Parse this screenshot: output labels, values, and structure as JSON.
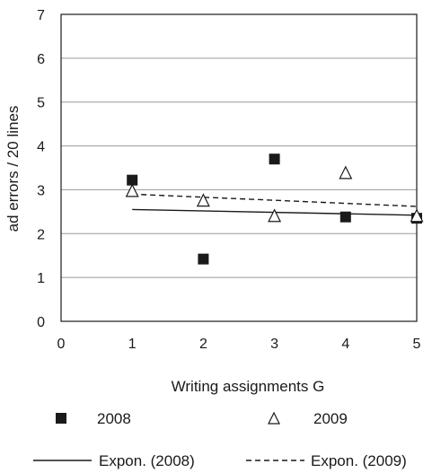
{
  "chart_data": {
    "type": "scatter",
    "title": "",
    "xlabel": "Writing assignments   G",
    "ylabel": "ad errors  / 20 lines",
    "xlim": [
      0,
      5
    ],
    "ylim": [
      0,
      7
    ],
    "xticks": [
      "0",
      "1",
      "2",
      "3",
      "4",
      "5"
    ],
    "yticks": [
      "0",
      "1",
      "2",
      "3",
      "4",
      "5",
      "6",
      "7"
    ],
    "grid": "horizontal",
    "legend_placement": "bottom",
    "series": [
      {
        "name": "2008",
        "marker": "square",
        "color": "#1a1a1a",
        "x": [
          1,
          2,
          3,
          4,
          5
        ],
        "y": [
          3.22,
          1.42,
          3.7,
          2.38,
          2.35
        ]
      },
      {
        "name": "2009",
        "marker": "triangle",
        "color": "#1a1a1a",
        "x": [
          1,
          2,
          3,
          4,
          5
        ],
        "y": [
          2.97,
          2.75,
          2.4,
          3.38,
          2.4
        ]
      }
    ],
    "trendlines": [
      {
        "name": "Expon. (2008)",
        "style": "solid",
        "x": [
          1,
          5
        ],
        "y": [
          2.55,
          2.42
        ]
      },
      {
        "name": "Expon. (2009)",
        "style": "dashed",
        "x": [
          1,
          5
        ],
        "y": [
          2.9,
          2.62
        ]
      }
    ]
  }
}
